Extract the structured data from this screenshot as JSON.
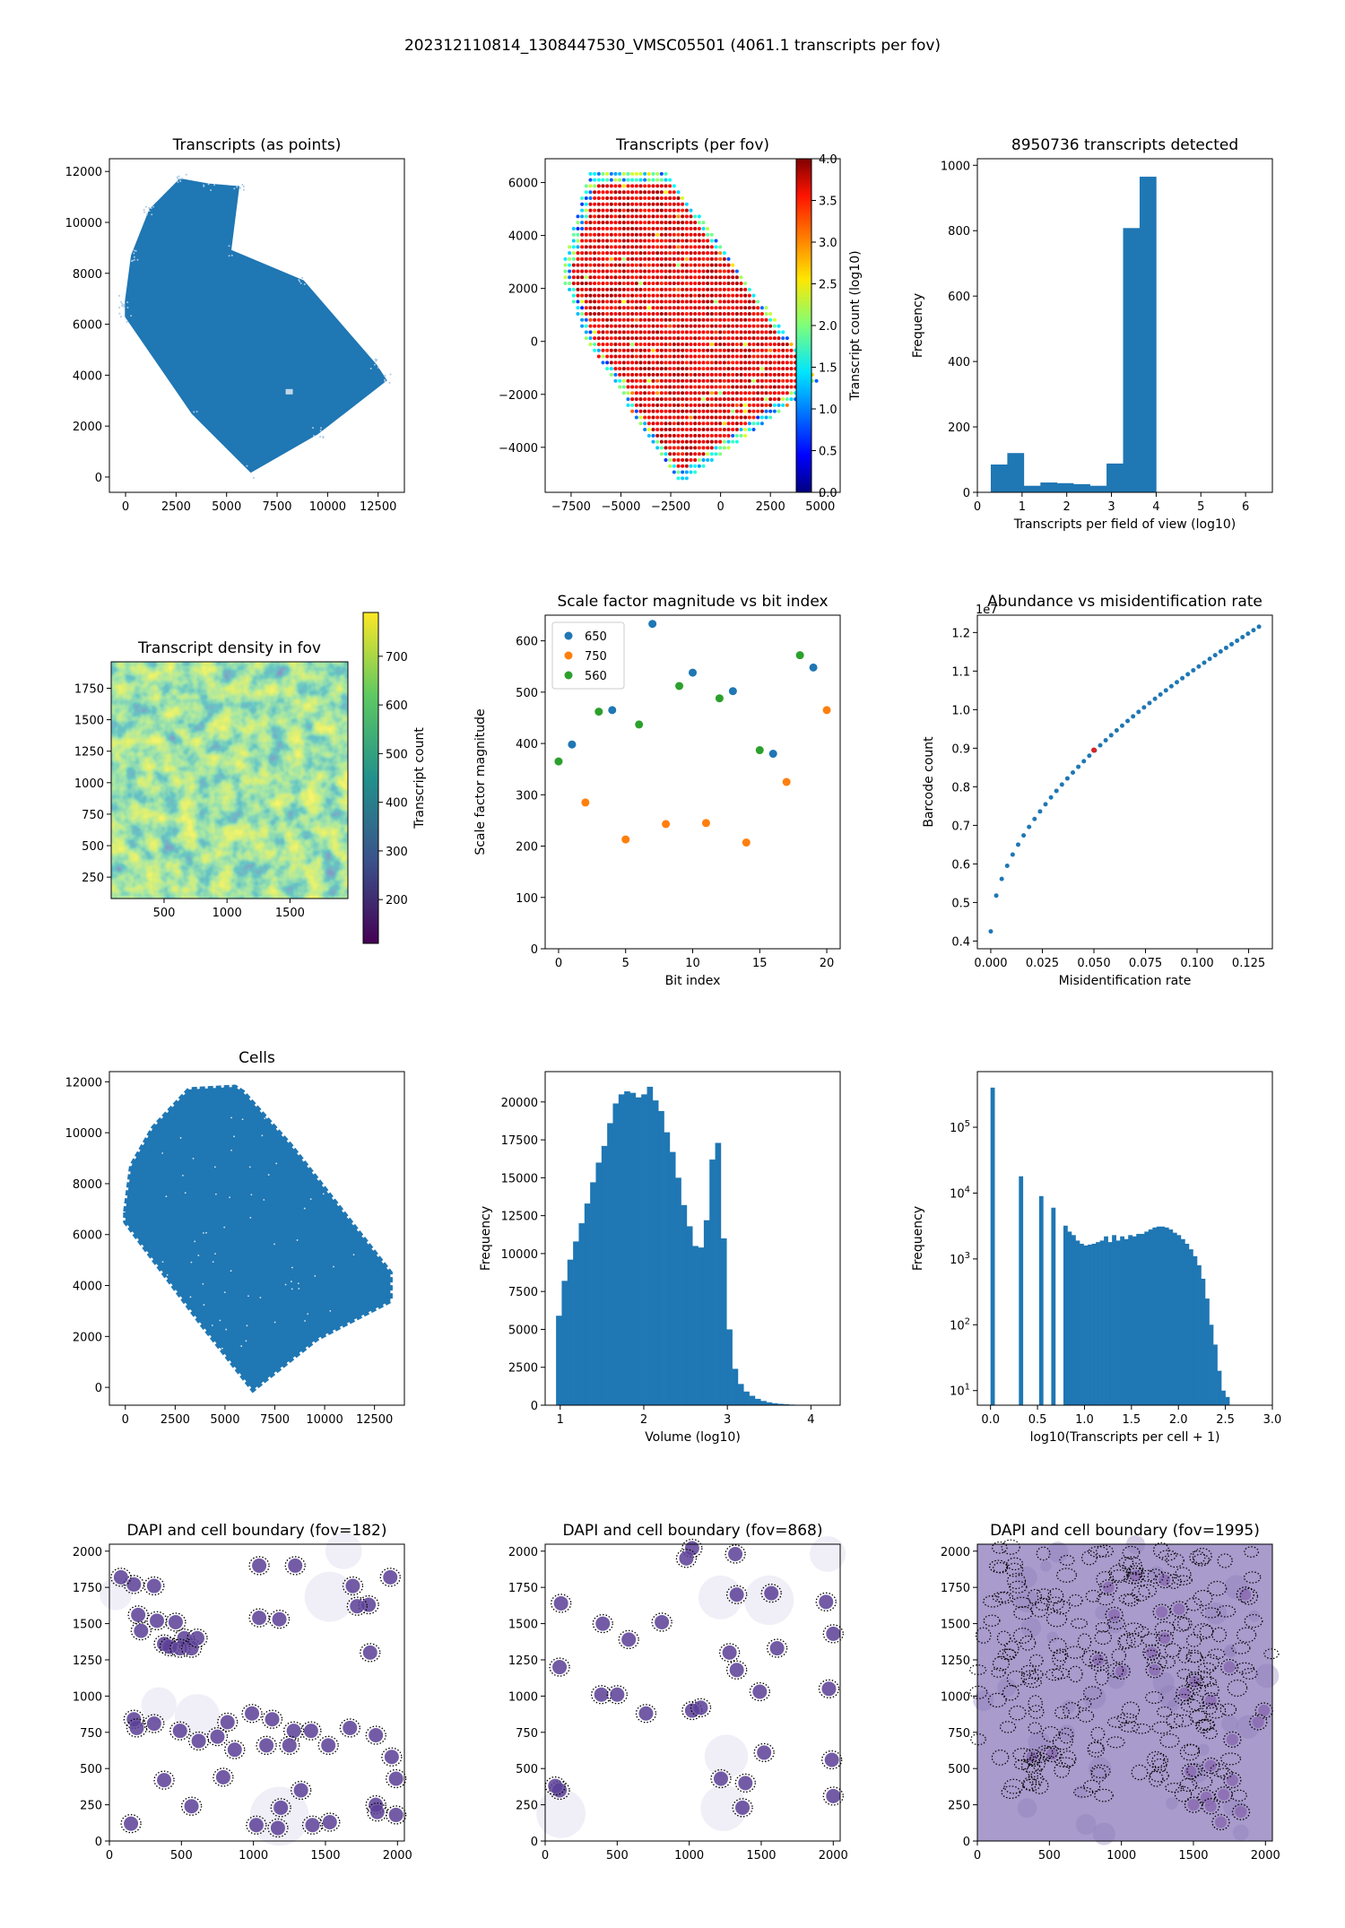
{
  "figure": {
    "suptitle": "202312110814_1308447530_VMSC05501 (4061.1 transcripts per fov)"
  },
  "colors": {
    "steel_blue": "#1f77b4",
    "orange": "#ff7f0e",
    "green": "#2ca02c",
    "dapi_purple": "#5a3e96",
    "highlight_point": "#d62728"
  },
  "chart_data": [
    {
      "id": "transcripts-points",
      "type": "scatter",
      "title": "Transcripts (as points)",
      "xlabel": "",
      "ylabel": "",
      "xlim": [
        -800,
        13800
      ],
      "ylim": [
        -600,
        12500
      ],
      "xticks": [
        0,
        2500,
        5000,
        7500,
        10000,
        12500
      ],
      "yticks": [
        0,
        2000,
        4000,
        6000,
        8000,
        10000,
        12000
      ],
      "outline": [
        [
          0,
          6900
        ],
        [
          300,
          8700
        ],
        [
          1200,
          10500
        ],
        [
          2700,
          11700
        ],
        [
          4100,
          11500
        ],
        [
          5600,
          11400
        ],
        [
          5200,
          8900
        ],
        [
          8800,
          7700
        ],
        [
          12400,
          4400
        ],
        [
          12900,
          3800
        ],
        [
          9500,
          1700
        ],
        [
          6200,
          200
        ],
        [
          3300,
          2500
        ],
        [
          0,
          6300
        ]
      ],
      "color": "#1f77b4"
    },
    {
      "id": "transcripts-per-fov",
      "type": "scatter",
      "title": "Transcripts (per fov)",
      "xlabel": "",
      "ylabel": "",
      "xlim": [
        -8800,
        6000
      ],
      "ylim": [
        -5700,
        6900
      ],
      "xticks": [
        -7500,
        -5000,
        -2500,
        0,
        2500,
        5000
      ],
      "xtick_labels": [
        "−7500",
        "−5000",
        "−2500",
        "0",
        "2500",
        "5000"
      ],
      "yticks": [
        -4000,
        -2000,
        0,
        2000,
        4000,
        6000
      ],
      "ytick_labels": [
        "−4000",
        "−2000",
        "0",
        "2000",
        "4000",
        "6000"
      ],
      "colorbar": {
        "label": "Transcript count (log10)",
        "range": [
          0.0,
          4.0
        ],
        "ticks": [
          0.0,
          0.5,
          1.0,
          1.5,
          2.0,
          2.5,
          3.0,
          3.5,
          4.0
        ],
        "tick_labels": [
          "0.0",
          "0.5",
          "1.0",
          "1.5",
          "2.0",
          "2.5",
          "3.0",
          "3.5",
          "4.0"
        ],
        "colormap": "jet"
      },
      "polygon": [
        [
          -8000,
          2600
        ],
        [
          -6600,
          6400
        ],
        [
          -2700,
          6400
        ],
        [
          5000,
          -1500
        ],
        [
          -2100,
          -5400
        ],
        [
          -6700,
          0
        ]
      ],
      "typical_value": 3.6
    },
    {
      "id": "transcripts-hist",
      "type": "bar",
      "title": "8950736 transcripts detected",
      "xlabel": "Transcripts per field of view (log10)",
      "ylabel": "Frequency",
      "xlim": [
        0,
        6.6
      ],
      "ylim": [
        0,
        1020
      ],
      "xticks": [
        0,
        1,
        2,
        3,
        4,
        5,
        6
      ],
      "yticks": [
        0,
        200,
        400,
        600,
        800,
        1000
      ],
      "bin_edges": [
        0.3,
        0.67,
        1.04,
        1.41,
        1.78,
        2.15,
        2.52,
        2.89,
        3.26,
        3.63,
        4.0
      ],
      "values": [
        85,
        120,
        20,
        30,
        28,
        25,
        20,
        88,
        808,
        965
      ],
      "color": "#1f77b4"
    },
    {
      "id": "density-fov",
      "type": "heatmap",
      "title": "Transcript density in fov",
      "xlabel": "",
      "ylabel": "",
      "xlim": [
        80,
        1960
      ],
      "ylim": [
        80,
        1960
      ],
      "xticks": [
        500,
        1000,
        1500
      ],
      "yticks": [
        250,
        500,
        750,
        1000,
        1250,
        1500,
        1750
      ],
      "colorbar": {
        "label": "Transcript count",
        "range": [
          110,
          790
        ],
        "ticks": [
          200,
          300,
          400,
          500,
          600,
          700
        ],
        "colormap": "viridis"
      }
    },
    {
      "id": "scale-factor",
      "type": "scatter",
      "title": "Scale factor magnitude vs bit index",
      "xlabel": "Bit index",
      "ylabel": "Scale factor magnitude",
      "xlim": [
        -1,
        21
      ],
      "ylim": [
        0,
        650
      ],
      "xticks": [
        0,
        5,
        10,
        15,
        20
      ],
      "yticks": [
        0,
        100,
        200,
        300,
        400,
        500,
        600
      ],
      "legend_position": "upper-left",
      "series": [
        {
          "name": "650",
          "color": "#1f77b4",
          "points": [
            [
              1,
              398
            ],
            [
              4,
              465
            ],
            [
              7,
              633
            ],
            [
              10,
              538
            ],
            [
              13,
              502
            ],
            [
              16,
              380
            ],
            [
              19,
              548
            ]
          ]
        },
        {
          "name": "750",
          "color": "#ff7f0e",
          "points": [
            [
              2,
              285
            ],
            [
              5,
              213
            ],
            [
              8,
              243
            ],
            [
              11,
              245
            ],
            [
              14,
              207
            ],
            [
              17,
              325
            ],
            [
              20,
              465
            ]
          ]
        },
        {
          "name": "560",
          "color": "#2ca02c",
          "points": [
            [
              0,
              365
            ],
            [
              3,
              462
            ],
            [
              6,
              437
            ],
            [
              9,
              512
            ],
            [
              12,
              488
            ],
            [
              15,
              387
            ],
            [
              18,
              572
            ]
          ]
        }
      ]
    },
    {
      "id": "abundance-misid",
      "type": "line",
      "title": "Abundance vs misidentification rate",
      "xlabel": "Misidentification rate",
      "ylabel": "Barcode count",
      "offset_text": "1e7",
      "xlim": [
        -0.0065,
        0.1365
      ],
      "ylim": [
        0.38,
        1.245
      ],
      "xticks": [
        0.0,
        0.025,
        0.05,
        0.075,
        0.1,
        0.125
      ],
      "xtick_labels": [
        "0.000",
        "0.025",
        "0.050",
        "0.075",
        "0.100",
        "0.125"
      ],
      "yticks": [
        0.4,
        0.5,
        0.6,
        0.7,
        0.8,
        0.9,
        1.0,
        1.1,
        1.2
      ],
      "ytick_labels": [
        "0.4",
        "0.5",
        "0.6",
        "0.7",
        "0.8",
        "0.9",
        "1.0",
        "1.1",
        "1.2"
      ],
      "curve": {
        "x_start": 0.0,
        "x_end": 0.13,
        "y_start": 0.425,
        "y_end": 1.215,
        "points": 50
      },
      "highlight": [
        0.05,
        0.895
      ],
      "color": "#1f77b4"
    },
    {
      "id": "cells-points",
      "type": "scatter",
      "title": "Cells",
      "xlabel": "",
      "ylabel": "",
      "xlim": [
        -800,
        14000
      ],
      "ylim": [
        -700,
        12400
      ],
      "xticks": [
        0,
        2500,
        5000,
        7500,
        10000,
        12500
      ],
      "yticks": [
        0,
        2000,
        4000,
        6000,
        8000,
        10000,
        12000
      ],
      "outline": [
        [
          0,
          6900
        ],
        [
          300,
          8700
        ],
        [
          1400,
          10200
        ],
        [
          3200,
          11700
        ],
        [
          5500,
          11800
        ],
        [
          5900,
          11600
        ],
        [
          8300,
          9500
        ],
        [
          13300,
          4500
        ],
        [
          13300,
          3400
        ],
        [
          9600,
          1900
        ],
        [
          6400,
          -100
        ],
        [
          3800,
          2500
        ],
        [
          0,
          6500
        ]
      ],
      "color": "#1f77b4"
    },
    {
      "id": "volume-hist",
      "type": "bar",
      "title": "",
      "xlabel": "Volume (log10)",
      "ylabel": "Frequency",
      "xlim": [
        0.82,
        4.35
      ],
      "ylim": [
        0,
        22000
      ],
      "xticks": [
        1,
        2,
        3,
        4
      ],
      "yticks": [
        0,
        2500,
        5000,
        7500,
        10000,
        12500,
        15000,
        17500,
        20000
      ],
      "bin_start": 0.95,
      "bin_width": 0.068,
      "values": [
        5900,
        8200,
        9600,
        10800,
        12000,
        13300,
        14700,
        16000,
        17100,
        18600,
        19900,
        20500,
        20700,
        20600,
        20300,
        20500,
        21000,
        20100,
        19400,
        18000,
        16700,
        15000,
        13200,
        11800,
        10500,
        10400,
        12200,
        16200,
        17300,
        11000,
        5000,
        2400,
        1400,
        900,
        620,
        420,
        280,
        190,
        130,
        90,
        60,
        40,
        28,
        18,
        12
      ],
      "color": "#1f77b4"
    },
    {
      "id": "transcripts-per-cell-hist",
      "type": "bar",
      "title": "",
      "xlabel": "log10(Transcripts per cell + 1)",
      "ylabel": "Frequency",
      "yscale": "log",
      "xlim": [
        -0.14,
        3.0
      ],
      "ylim": [
        6,
        700000
      ],
      "xticks": [
        0.0,
        0.5,
        1.0,
        1.5,
        2.0,
        2.5,
        3.0
      ],
      "xtick_labels": [
        "0.0",
        "0.5",
        "1.0",
        "1.5",
        "2.0",
        "2.5",
        "3.0"
      ],
      "yticks": [
        10,
        100,
        1000,
        10000,
        100000
      ],
      "ytick_labels": [
        "10^1",
        "10^2",
        "10^3",
        "10^4",
        "10^5"
      ],
      "bin_start": 0.0,
      "bin_width": 0.0431,
      "values": [
        400000,
        0,
        0,
        0,
        0,
        0,
        0,
        18000,
        0,
        0,
        0,
        0,
        9000,
        0,
        0,
        6000,
        0,
        0,
        3200,
        2600,
        2300,
        1900,
        1700,
        1600,
        1650,
        1700,
        1800,
        1900,
        2200,
        1800,
        2300,
        1900,
        2200,
        2000,
        2300,
        2200,
        2400,
        2400,
        2600,
        2800,
        3000,
        3100,
        3100,
        3000,
        2800,
        2500,
        2300,
        2000,
        1700,
        1400,
        1100,
        800,
        500,
        250,
        100,
        50,
        20,
        10,
        8
      ],
      "color": "#1f77b4"
    },
    {
      "id": "dapi-182",
      "type": "scatter",
      "title": "DAPI and cell boundary (fov=182)",
      "xlim": [
        0,
        2048
      ],
      "ylim": [
        0,
        2048
      ],
      "xticks": [
        0,
        500,
        1000,
        1500,
        2000
      ],
      "yticks": [
        0,
        250,
        500,
        750,
        1000,
        1250,
        1500,
        1750,
        2000
      ],
      "background": "#ffffff",
      "nuclei": [
        [
          200,
          1560
        ],
        [
          330,
          1520
        ],
        [
          460,
          1510
        ],
        [
          520,
          1400
        ],
        [
          380,
          1360
        ],
        [
          420,
          1340
        ],
        [
          490,
          1330
        ],
        [
          220,
          1450
        ],
        [
          170,
          1770
        ],
        [
          310,
          1760
        ],
        [
          570,
          1330
        ],
        [
          610,
          1400
        ],
        [
          1040,
          1540
        ],
        [
          1180,
          1530
        ],
        [
          1040,
          1900
        ],
        [
          1290,
          1900
        ],
        [
          1690,
          1760
        ],
        [
          1800,
          1630
        ],
        [
          1720,
          1620
        ],
        [
          1810,
          1300
        ],
        [
          170,
          840
        ],
        [
          190,
          780
        ],
        [
          310,
          810
        ],
        [
          490,
          760
        ],
        [
          620,
          690
        ],
        [
          750,
          720
        ],
        [
          820,
          820
        ],
        [
          990,
          880
        ],
        [
          1130,
          840
        ],
        [
          1280,
          760
        ],
        [
          1400,
          760
        ],
        [
          1250,
          660
        ],
        [
          1090,
          660
        ],
        [
          870,
          630
        ],
        [
          1670,
          780
        ],
        [
          1850,
          730
        ],
        [
          1960,
          580
        ],
        [
          1990,
          430
        ],
        [
          1850,
          250
        ],
        [
          1520,
          660
        ],
        [
          1330,
          350
        ],
        [
          1190,
          230
        ],
        [
          570,
          240
        ],
        [
          790,
          440
        ],
        [
          380,
          420
        ],
        [
          150,
          120
        ],
        [
          1020,
          110
        ],
        [
          1170,
          90
        ],
        [
          1530,
          130
        ],
        [
          1990,
          180
        ],
        [
          1410,
          110
        ],
        [
          80,
          1820
        ],
        [
          1950,
          1820
        ],
        [
          1860,
          200
        ]
      ]
    },
    {
      "id": "dapi-868",
      "type": "scatter",
      "title": "DAPI and cell boundary (fov=868)",
      "xlim": [
        0,
        2048
      ],
      "ylim": [
        0,
        2048
      ],
      "xticks": [
        0,
        500,
        1000,
        1500,
        2000
      ],
      "yticks": [
        0,
        250,
        500,
        750,
        1000,
        1250,
        1500,
        1750,
        2000
      ],
      "background": "#ffffff",
      "nuclei": [
        [
          110,
          1640
        ],
        [
          100,
          1200
        ],
        [
          390,
          1010
        ],
        [
          500,
          1010
        ],
        [
          700,
          880
        ],
        [
          810,
          1510
        ],
        [
          580,
          1390
        ],
        [
          1020,
          900
        ],
        [
          1080,
          920
        ],
        [
          1020,
          2020
        ],
        [
          1330,
          1180
        ],
        [
          1280,
          1300
        ],
        [
          1610,
          1330
        ],
        [
          1490,
          1030
        ],
        [
          1520,
          610
        ],
        [
          1370,
          230
        ],
        [
          1220,
          430
        ],
        [
          1390,
          400
        ],
        [
          100,
          350
        ],
        [
          70,
          380
        ],
        [
          2000,
          1430
        ],
        [
          1990,
          560
        ],
        [
          2000,
          310
        ],
        [
          1970,
          1050
        ],
        [
          1950,
          1650
        ],
        [
          1570,
          1710
        ],
        [
          1330,
          1700
        ],
        [
          980,
          1950
        ],
        [
          1320,
          1980
        ],
        [
          400,
          1500
        ]
      ]
    },
    {
      "id": "dapi-1995",
      "type": "scatter",
      "title": "DAPI and cell boundary (fov=1995)",
      "xlim": [
        0,
        2048
      ],
      "ylim": [
        0,
        2048
      ],
      "xticks": [
        0,
        500,
        1000,
        1500,
        2000
      ],
      "yticks": [
        0,
        250,
        500,
        750,
        1000,
        1250,
        1500,
        1750,
        2000
      ],
      "background": "#a99bcc",
      "nuclei": [
        [
          380,
          580
        ],
        [
          520,
          600
        ],
        [
          1000,
          1170
        ],
        [
          840,
          1250
        ],
        [
          1230,
          1180
        ],
        [
          1210,
          1300
        ],
        [
          1280,
          1580
        ],
        [
          1400,
          1600
        ],
        [
          950,
          1560
        ],
        [
          1100,
          1830
        ],
        [
          910,
          1750
        ],
        [
          1860,
          1700
        ],
        [
          1990,
          900
        ],
        [
          1510,
          1100
        ],
        [
          1750,
          1200
        ],
        [
          1620,
          970
        ],
        [
          1770,
          700
        ],
        [
          1950,
          820
        ],
        [
          1480,
          480
        ],
        [
          1620,
          520
        ],
        [
          1770,
          420
        ],
        [
          1500,
          250
        ],
        [
          1830,
          200
        ],
        [
          1690,
          130
        ],
        [
          1590,
          300
        ],
        [
          1300,
          1400
        ],
        [
          1300,
          1800
        ],
        [
          1440,
          1020
        ],
        [
          1620,
          240
        ],
        [
          1710,
          320
        ]
      ]
    }
  ]
}
